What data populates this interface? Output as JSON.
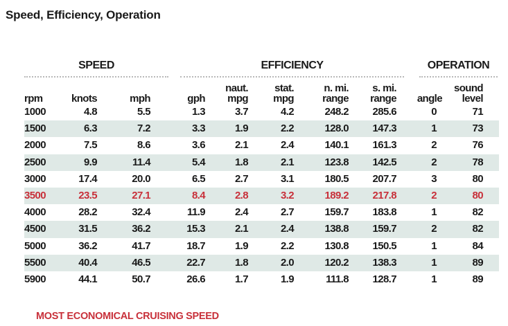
{
  "title": "Speed, Efficiency, Operation",
  "groups": {
    "speed": "SPEED",
    "efficiency": "EFFICIENCY",
    "operation": "OPERATION"
  },
  "columns": [
    {
      "l1": "",
      "l2": "rpm"
    },
    {
      "l1": "",
      "l2": "knots"
    },
    {
      "l1": "",
      "l2": "mph"
    },
    {
      "l1": "",
      "l2": "gph"
    },
    {
      "l1": "naut.",
      "l2": "mpg"
    },
    {
      "l1": "stat.",
      "l2": "mpg"
    },
    {
      "l1": "n. mi.",
      "l2": "range"
    },
    {
      "l1": "s. mi.",
      "l2": "range"
    },
    {
      "l1": "",
      "l2": "angle"
    },
    {
      "l1": "sound",
      "l2": "level"
    }
  ],
  "rows": [
    [
      "1000",
      "4.8",
      "5.5",
      "1.3",
      "3.7",
      "4.2",
      "248.2",
      "285.6",
      "0",
      "71"
    ],
    [
      "1500",
      "6.3",
      "7.2",
      "3.3",
      "1.9",
      "2.2",
      "128.0",
      "147.3",
      "1",
      "73"
    ],
    [
      "2000",
      "7.5",
      "8.6",
      "3.6",
      "2.1",
      "2.4",
      "140.1",
      "161.3",
      "2",
      "76"
    ],
    [
      "2500",
      "9.9",
      "11.4",
      "5.4",
      "1.8",
      "2.1",
      "123.8",
      "142.5",
      "2",
      "78"
    ],
    [
      "3000",
      "17.4",
      "20.0",
      "6.5",
      "2.7",
      "3.1",
      "180.5",
      "207.7",
      "3",
      "80"
    ],
    [
      "3500",
      "23.5",
      "27.1",
      "8.4",
      "2.8",
      "3.2",
      "189.2",
      "217.8",
      "2",
      "80"
    ],
    [
      "4000",
      "28.2",
      "32.4",
      "11.9",
      "2.4",
      "2.7",
      "159.7",
      "183.8",
      "1",
      "82"
    ],
    [
      "4500",
      "31.5",
      "36.2",
      "15.3",
      "2.1",
      "2.4",
      "138.8",
      "159.7",
      "2",
      "82"
    ],
    [
      "5000",
      "36.2",
      "41.7",
      "18.7",
      "1.9",
      "2.2",
      "130.8",
      "150.5",
      "1",
      "84"
    ],
    [
      "5500",
      "40.4",
      "46.5",
      "22.7",
      "1.8",
      "2.0",
      "120.2",
      "138.3",
      "1",
      "89"
    ],
    [
      "5900",
      "44.1",
      "50.7",
      "26.6",
      "1.7",
      "1.9",
      "111.8",
      "128.7",
      "1",
      "89"
    ]
  ],
  "highlight_row": 5,
  "highlight_color": "#c8303a",
  "shade_color": "#dfe9e6",
  "footnote": "MOST ECONOMICAL CRUISING SPEED"
}
